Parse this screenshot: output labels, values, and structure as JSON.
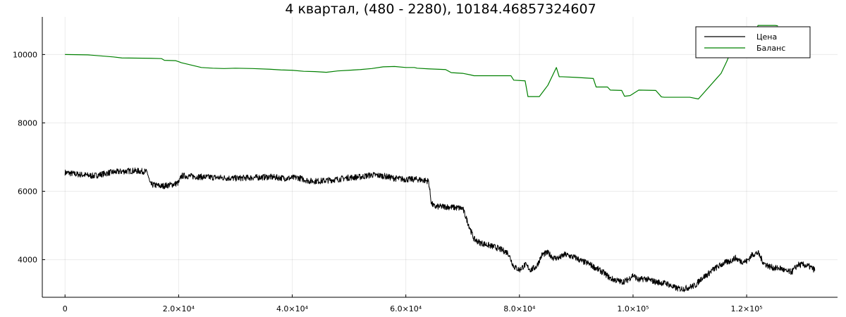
{
  "chart_data": {
    "type": "line",
    "title": "4 квартал, (480 - 2280), 10184.46857324607",
    "xlabel": "",
    "ylabel": "",
    "xlim": [
      -4000,
      136000
    ],
    "ylim": [
      2900,
      11100
    ],
    "grid": true,
    "legend_position": "top-right",
    "x_ticks": [
      {
        "value": 0,
        "label": "0"
      },
      {
        "value": 20000,
        "label": "2.0×10⁴"
      },
      {
        "value": 40000,
        "label": "4.0×10⁴"
      },
      {
        "value": 60000,
        "label": "6.0×10⁴"
      },
      {
        "value": 80000,
        "label": "8.0×10⁴"
      },
      {
        "value": 100000,
        "label": "1.0×10⁵"
      },
      {
        "value": 120000,
        "label": "1.2×10⁵"
      }
    ],
    "y_ticks": [
      {
        "value": 4000,
        "label": "4000"
      },
      {
        "value": 6000,
        "label": "6000"
      },
      {
        "value": 8000,
        "label": "8000"
      },
      {
        "value": 10000,
        "label": "10000"
      }
    ],
    "series": [
      {
        "name": "Цена",
        "color": "#000000",
        "noise_amplitude": 90,
        "x": [
          0,
          2000,
          5000,
          8000,
          10000,
          12000,
          14000,
          14500,
          15000,
          17000,
          19000,
          20000,
          20500,
          21000,
          24000,
          27000,
          30000,
          33000,
          36000,
          39000,
          41000,
          43000,
          45000,
          48000,
          50000,
          52000,
          54000,
          56000,
          58000,
          60000,
          62000,
          64000,
          64500,
          65000,
          67000,
          70000,
          71000,
          72000,
          73000,
          74000,
          76000,
          78000,
          79000,
          80000,
          81000,
          82000,
          83000,
          84000,
          85000,
          86000,
          87000,
          88000,
          90000,
          91000,
          92000,
          93000,
          95000,
          96000,
          97000,
          98000,
          99000,
          100000,
          101000,
          102000,
          104000,
          106000,
          107000,
          108000,
          109000,
          110000,
          111000,
          112000,
          113000,
          114000,
          115000,
          116000,
          117000,
          118000,
          119000,
          120000,
          121000,
          122000,
          123000,
          124000,
          125000,
          126000,
          127000,
          128000,
          129000,
          130000,
          131000,
          132000
        ],
        "y": [
          6550,
          6500,
          6450,
          6550,
          6580,
          6600,
          6580,
          6550,
          6200,
          6150,
          6200,
          6250,
          6450,
          6450,
          6420,
          6400,
          6380,
          6400,
          6420,
          6380,
          6400,
          6300,
          6300,
          6350,
          6400,
          6420,
          6480,
          6450,
          6380,
          6350,
          6350,
          6300,
          5650,
          5550,
          5550,
          5500,
          5050,
          4600,
          4500,
          4450,
          4350,
          4200,
          3800,
          3700,
          3850,
          3700,
          3800,
          4150,
          4200,
          4050,
          4050,
          4150,
          4050,
          3950,
          3900,
          3800,
          3600,
          3450,
          3400,
          3350,
          3400,
          3550,
          3400,
          3450,
          3350,
          3300,
          3200,
          3150,
          3150,
          3200,
          3250,
          3450,
          3550,
          3700,
          3800,
          3900,
          3950,
          4050,
          3950,
          3950,
          4150,
          4200,
          3900,
          3800,
          3750,
          3750,
          3650,
          3650,
          3850,
          3850,
          3800,
          3700
        ]
      },
      {
        "name": "Баланс",
        "color": "#008000",
        "x": [
          0,
          4000,
          7000,
          8500,
          10000,
          15000,
          17000,
          17500,
          19500,
          20500,
          22000,
          24000,
          26000,
          28000,
          30000,
          33000,
          36000,
          38000,
          40000,
          42000,
          44000,
          46000,
          48000,
          50000,
          52000,
          54000,
          56000,
          58000,
          60000,
          61500,
          62000,
          64000,
          67000,
          68000,
          70000,
          71500,
          72000,
          78500,
          79000,
          81000,
          81500,
          83500,
          85000,
          86500,
          87000,
          87500,
          90000,
          93000,
          93500,
          95500,
          96000,
          98000,
          98500,
          99500,
          101000,
          104000,
          105000,
          105500,
          110000,
          111500,
          115500,
          116500,
          117000,
          119000,
          120000,
          121000,
          122000,
          125000,
          125500
        ],
        "y": [
          10000,
          9990,
          9950,
          9930,
          9900,
          9890,
          9880,
          9830,
          9820,
          9760,
          9700,
          9620,
          9600,
          9590,
          9600,
          9590,
          9570,
          9550,
          9540,
          9510,
          9500,
          9480,
          9520,
          9540,
          9560,
          9590,
          9640,
          9650,
          9620,
          9620,
          9600,
          9580,
          9560,
          9470,
          9450,
          9400,
          9380,
          9380,
          9250,
          9230,
          8770,
          8770,
          9100,
          9620,
          9350,
          9350,
          9330,
          9300,
          9050,
          9050,
          8960,
          8950,
          8780,
          8800,
          8960,
          8950,
          8760,
          8750,
          8750,
          8700,
          9450,
          9800,
          10000,
          10100,
          10200,
          10400,
          10850,
          10850,
          10840
        ]
      }
    ]
  }
}
